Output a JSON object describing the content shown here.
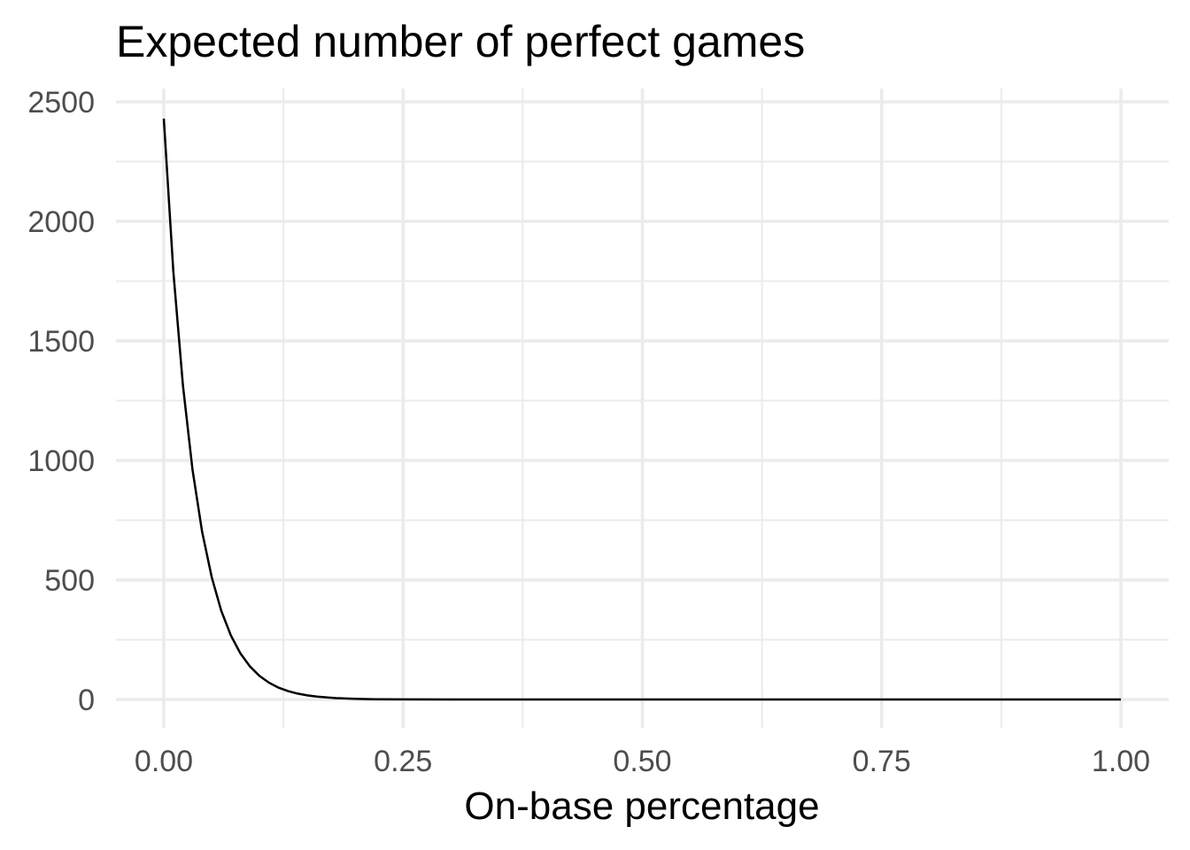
{
  "chart_data": {
    "type": "line",
    "title": "Expected number of perfect games",
    "xlabel": "On-base percentage",
    "ylabel": "",
    "xlim": [
      0,
      1
    ],
    "ylim": [
      0,
      2500
    ],
    "x_ticks": [
      0,
      0.25,
      0.5,
      0.75,
      1
    ],
    "x_tick_labels": [
      "0.00",
      "0.25",
      "0.50",
      "0.75",
      "1.00"
    ],
    "x_minor_ticks": [
      0.125,
      0.375,
      0.625,
      0.875
    ],
    "y_ticks": [
      0,
      500,
      1000,
      1500,
      2000,
      2500
    ],
    "y_tick_labels": [
      "0",
      "500",
      "1000",
      "1500",
      "2000",
      "2500"
    ],
    "y_minor_ticks": [
      250,
      750,
      1250,
      1750,
      2250
    ],
    "grid": true,
    "legend": "none",
    "line_color": "#000000",
    "series": [
      {
        "x": [
          0.0,
          0.01,
          0.02,
          0.03,
          0.04,
          0.05,
          0.06,
          0.07,
          0.08,
          0.09,
          0.1,
          0.11,
          0.12,
          0.13,
          0.14,
          0.15,
          0.16,
          0.18,
          0.2,
          0.22,
          0.25,
          0.3,
          0.35,
          0.4,
          0.5,
          0.6,
          0.7,
          0.8,
          0.9,
          1.0
        ],
        "y": [
          2430,
          1789,
          1314,
          962,
          703,
          512,
          371,
          268,
          193,
          138,
          98.4,
          69.9,
          49.4,
          34.7,
          24.3,
          16.9,
          11.7,
          5.55,
          2.57,
          1.16,
          0.33,
          0.04,
          0.004,
          0.0003,
          0,
          0,
          0,
          0,
          0,
          0
        ]
      }
    ]
  }
}
